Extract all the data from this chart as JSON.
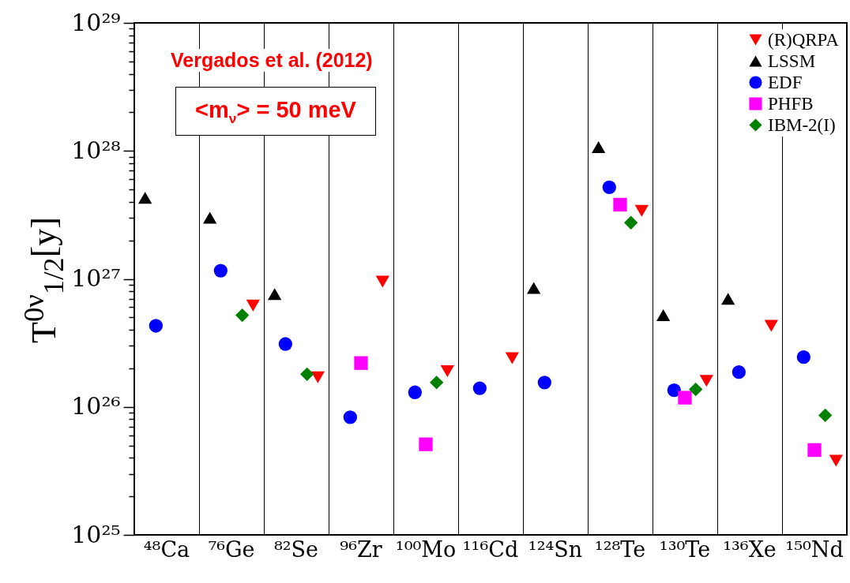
{
  "chart_data": {
    "type": "scatter",
    "categories": [
      "⁴⁸Ca",
      "⁷⁶Ge",
      "⁸²Se",
      "⁹⁶Zr",
      "¹⁰⁰Mo",
      "¹¹⁶Cd",
      "¹²⁴Sn",
      "¹²⁸Te",
      "¹³⁰Te",
      "¹³⁶Xe",
      "¹⁵⁰Nd"
    ],
    "ylabel": "T$^{0ν}$$_{1/2}$[y]",
    "annotations": [
      "Vergados et al. (2012)",
      "<m$_{ν}$> = 50 meV"
    ],
    "log": true,
    "ylim": [
      1e+25,
      1e+29
    ],
    "yticks": [
      {
        "value": 1e+25,
        "label": "10²⁵"
      },
      {
        "value": 2e+25,
        "label": null
      },
      {
        "value": 3e+25,
        "label": null
      },
      {
        "value": 4e+25,
        "label": null
      },
      {
        "value": 5e+25,
        "label": null
      },
      {
        "value": 6e+25,
        "label": null
      },
      {
        "value": 7e+25,
        "label": null
      },
      {
        "value": 8e+25,
        "label": null
      },
      {
        "value": 9e+25,
        "label": null
      },
      {
        "value": 1e+26,
        "label": "10²⁶"
      },
      {
        "value": 2e+26,
        "label": null
      },
      {
        "value": 3e+26,
        "label": null
      },
      {
        "value": 4e+26,
        "label": null
      },
      {
        "value": 5e+26,
        "label": null
      },
      {
        "value": 6e+26,
        "label": null
      },
      {
        "value": 7e+26,
        "label": null
      },
      {
        "value": 8e+26,
        "label": null
      },
      {
        "value": 9e+26,
        "label": null
      },
      {
        "value": 1e+27,
        "label": "10²⁷"
      },
      {
        "value": 2e+27,
        "label": null
      },
      {
        "value": 3e+27,
        "label": null
      },
      {
        "value": 4e+27,
        "label": null
      },
      {
        "value": 5e+27,
        "label": null
      },
      {
        "value": 6e+27,
        "label": null
      },
      {
        "value": 7e+27,
        "label": null
      },
      {
        "value": 8e+27,
        "label": null
      },
      {
        "value": 9e+27,
        "label": null
      },
      {
        "value": 1e+28,
        "label": "10²⁸"
      },
      {
        "value": 2e+28,
        "label": null
      },
      {
        "value": 3e+28,
        "label": null
      },
      {
        "value": 4e+28,
        "label": null
      },
      {
        "value": 5e+28,
        "label": null
      },
      {
        "value": 6e+28,
        "label": null
      },
      {
        "value": 7e+28,
        "label": null
      },
      {
        "value": 8e+28,
        "label": null
      },
      {
        "value": 9e+28,
        "label": null
      },
      {
        "value": 1e+29,
        "label": "10²⁹"
      }
    ],
    "grid": "x",
    "legend": "top right",
    "series": [
      {
        "name": "(R)QRPA",
        "color": "#ff0000",
        "marker": "triangle-down",
        "values": [
          null,
          6.2e+26,
          1.7e+26,
          9.5e+26,
          1.9e+26,
          2.4e+26,
          null,
          3.4e+27,
          1.6e+26,
          4.3e+26,
          3.8e+25
        ]
      },
      {
        "name": "LSSM",
        "color": "#000000",
        "marker": "triangle",
        "values": [
          4.3e+27,
          3e+27,
          7.6e+26,
          null,
          null,
          null,
          8.5e+26,
          1.07e+28,
          5.2e+26,
          7e+26,
          null
        ]
      },
      {
        "name": "EDF",
        "color": "#0000ff",
        "marker": "circle",
        "values": [
          4.3e+26,
          1.16e+27,
          3.1e+26,
          8.3e+25,
          1.3e+26,
          1.4e+26,
          1.55e+26,
          5.2e+27,
          1.35e+26,
          1.87e+26,
          2.45e+26
        ]
      },
      {
        "name": "PHFB",
        "color": "#ff00ff",
        "marker": "square",
        "values": [
          null,
          null,
          null,
          2.2e+26,
          5.1e+25,
          null,
          null,
          3.8e+27,
          1.18e+26,
          null,
          4.6e+25
        ]
      },
      {
        "name": "IBM-2(I)",
        "color": "#008000",
        "marker": "diamond",
        "values": [
          null,
          5.2e+26,
          1.8e+26,
          null,
          1.55e+26,
          null,
          null,
          2.75e+27,
          1.37e+26,
          null,
          8.6e+25
        ]
      }
    ]
  }
}
